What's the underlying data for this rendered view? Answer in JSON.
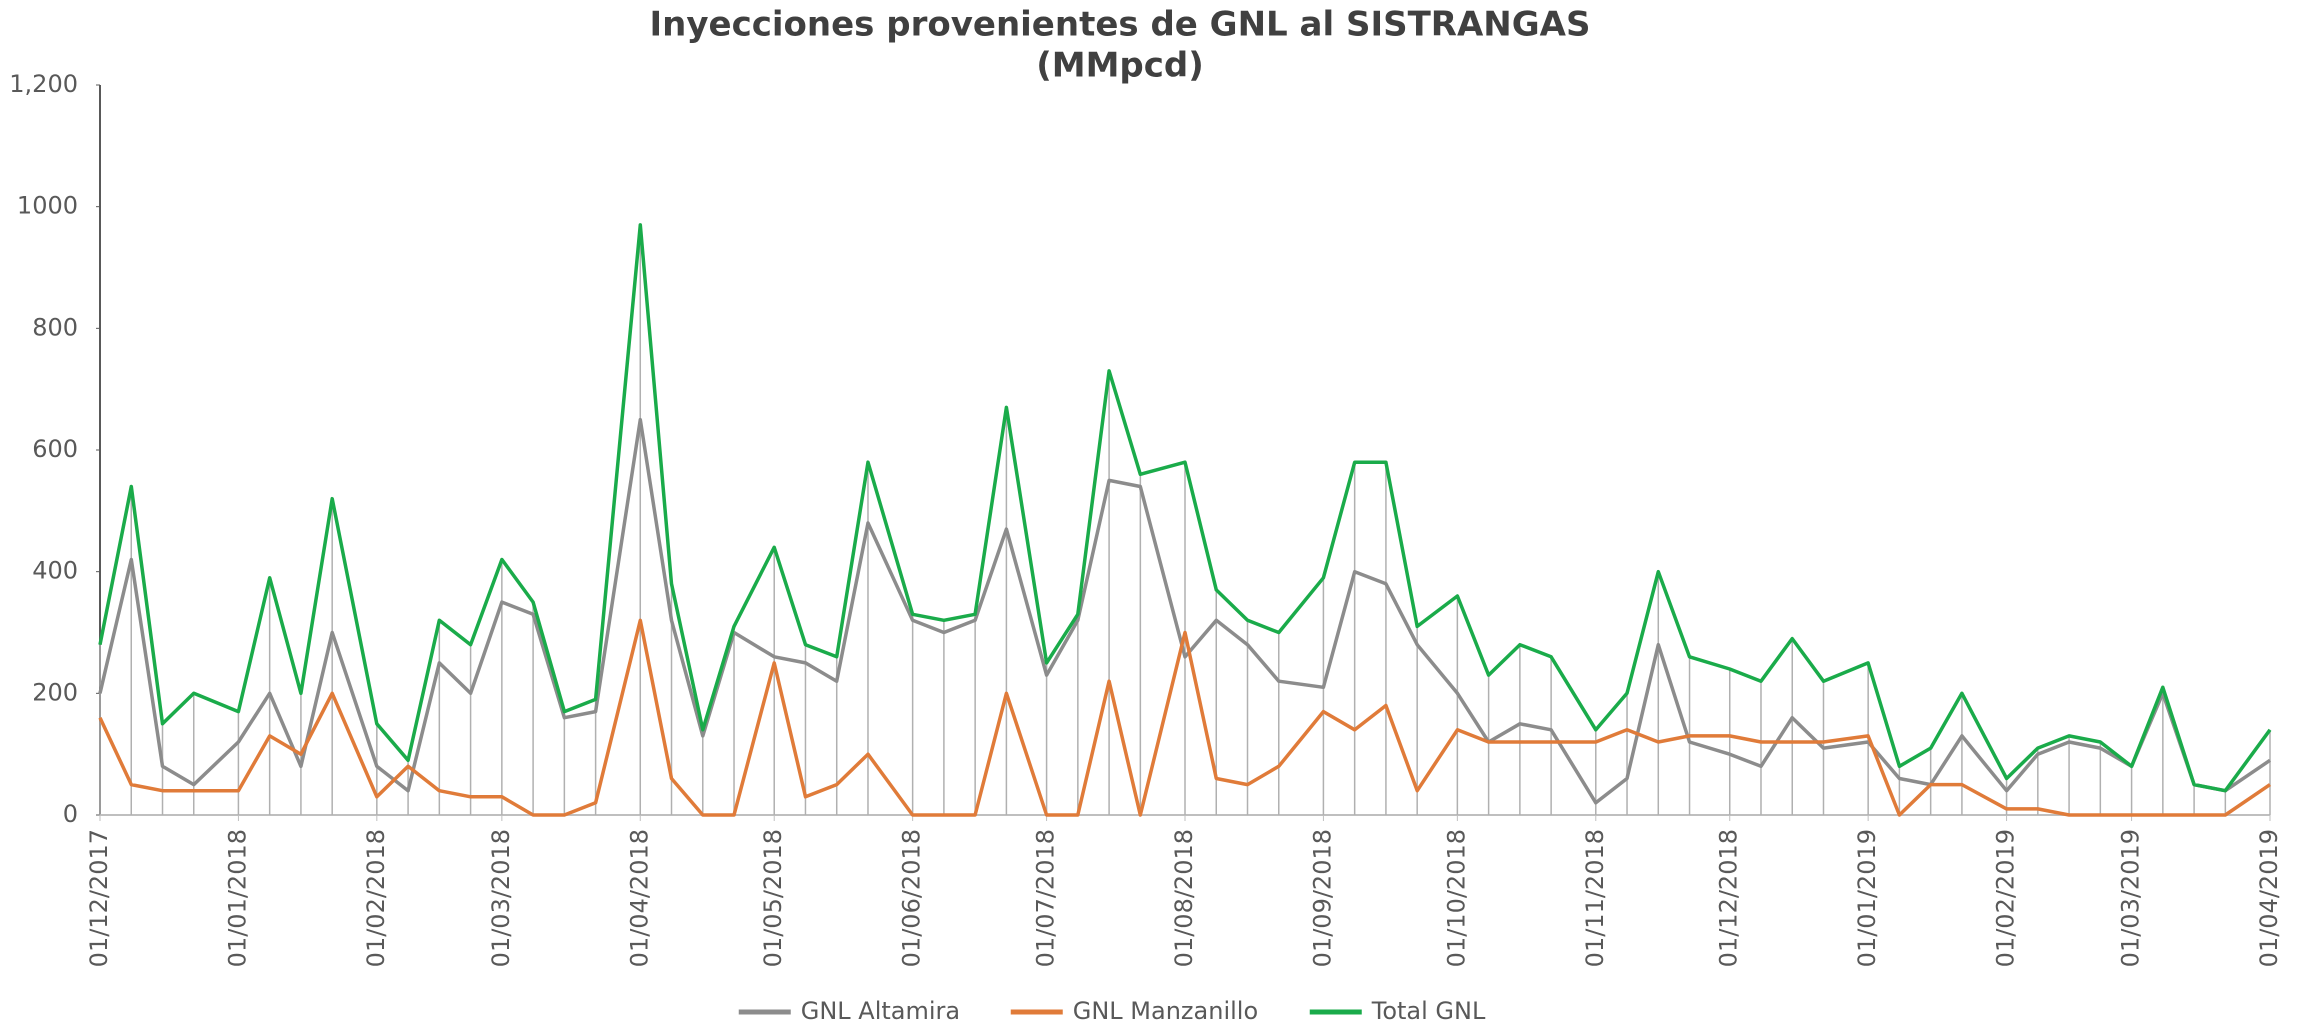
{
  "chart_data": {
    "type": "line",
    "title": "Inyecciones provenientes de GNL al SISTRANGAS",
    "subtitle": "(MMpcd)",
    "x": [
      "01/12/2017",
      "08/12/2017",
      "15/12/2017",
      "22/12/2017",
      "01/01/2018",
      "08/01/2018",
      "15/01/2018",
      "22/01/2018",
      "01/02/2018",
      "08/02/2018",
      "15/02/2018",
      "22/02/2018",
      "01/03/2018",
      "08/03/2018",
      "15/03/2018",
      "22/03/2018",
      "01/04/2018",
      "08/04/2018",
      "15/04/2018",
      "22/04/2018",
      "01/05/2018",
      "08/05/2018",
      "15/05/2018",
      "22/05/2018",
      "01/06/2018",
      "08/06/2018",
      "15/06/2018",
      "22/06/2018",
      "01/07/2018",
      "08/07/2018",
      "15/07/2018",
      "22/07/2018",
      "01/08/2018",
      "08/08/2018",
      "15/08/2018",
      "22/08/2018",
      "01/09/2018",
      "08/09/2018",
      "15/09/2018",
      "22/09/2018",
      "01/10/2018",
      "08/10/2018",
      "15/10/2018",
      "22/10/2018",
      "01/11/2018",
      "08/11/2018",
      "15/11/2018",
      "22/11/2018",
      "01/12/2018",
      "08/12/2018",
      "15/12/2018",
      "22/12/2018",
      "01/01/2019",
      "08/01/2019",
      "15/01/2019",
      "22/01/2019",
      "01/02/2019",
      "08/02/2019",
      "15/02/2019",
      "22/02/2019",
      "01/03/2019",
      "08/03/2019",
      "15/03/2019",
      "22/03/2019",
      "01/04/2019"
    ],
    "series": [
      {
        "name": "GNL Altamira",
        "color": "#8c8c8c",
        "values": [
          200,
          420,
          80,
          50,
          120,
          200,
          80,
          300,
          80,
          40,
          250,
          200,
          350,
          330,
          160,
          170,
          650,
          320,
          130,
          300,
          260,
          250,
          220,
          480,
          320,
          300,
          320,
          470,
          230,
          320,
          550,
          540,
          260,
          320,
          280,
          220,
          210,
          400,
          380,
          280,
          200,
          120,
          150,
          140,
          20,
          60,
          280,
          120,
          100,
          80,
          160,
          110,
          120,
          60,
          50,
          130,
          40,
          100,
          120,
          110,
          80,
          200,
          50,
          40,
          90
        ]
      },
      {
        "name": "GNL Manzanillo",
        "color": "#e07b39",
        "values": [
          160,
          50,
          40,
          40,
          40,
          130,
          100,
          200,
          30,
          80,
          40,
          30,
          30,
          0,
          0,
          20,
          320,
          60,
          0,
          0,
          250,
          30,
          50,
          100,
          0,
          0,
          0,
          200,
          0,
          0,
          220,
          0,
          300,
          60,
          50,
          80,
          170,
          140,
          180,
          40,
          140,
          120,
          120,
          120,
          120,
          140,
          120,
          130,
          130,
          120,
          120,
          120,
          130,
          0,
          50,
          50,
          10,
          10,
          0,
          0,
          0,
          0,
          0,
          0,
          50
        ]
      },
      {
        "name": "Total GNL",
        "color": "#1aab4a",
        "values": [
          280,
          540,
          150,
          200,
          170,
          390,
          200,
          520,
          150,
          90,
          320,
          280,
          420,
          350,
          170,
          190,
          970,
          380,
          140,
          310,
          440,
          280,
          260,
          580,
          330,
          320,
          330,
          670,
          250,
          330,
          730,
          560,
          580,
          370,
          320,
          300,
          390,
          580,
          580,
          310,
          360,
          230,
          280,
          260,
          140,
          200,
          400,
          260,
          240,
          220,
          290,
          220,
          250,
          80,
          110,
          200,
          60,
          110,
          130,
          120,
          80,
          210,
          50,
          40,
          140
        ]
      }
    ],
    "xlim": [
      "01/12/2017",
      "01/04/2019"
    ],
    "xticks": [
      "01/12/2017",
      "01/01/2018",
      "01/02/2018",
      "01/03/2018",
      "01/04/2018",
      "01/05/2018",
      "01/06/2018",
      "01/07/2018",
      "01/08/2018",
      "01/09/2018",
      "01/10/2018",
      "01/11/2018",
      "01/12/2018",
      "01/01/2019",
      "01/02/2019",
      "01/03/2019",
      "01/04/2019"
    ],
    "ylim": [
      0,
      1200
    ],
    "yticks": [
      0,
      200,
      400,
      600,
      800,
      1000,
      {
        "value": 1200,
        "label": "1,200"
      }
    ],
    "grid": false,
    "legend": "bottom"
  }
}
